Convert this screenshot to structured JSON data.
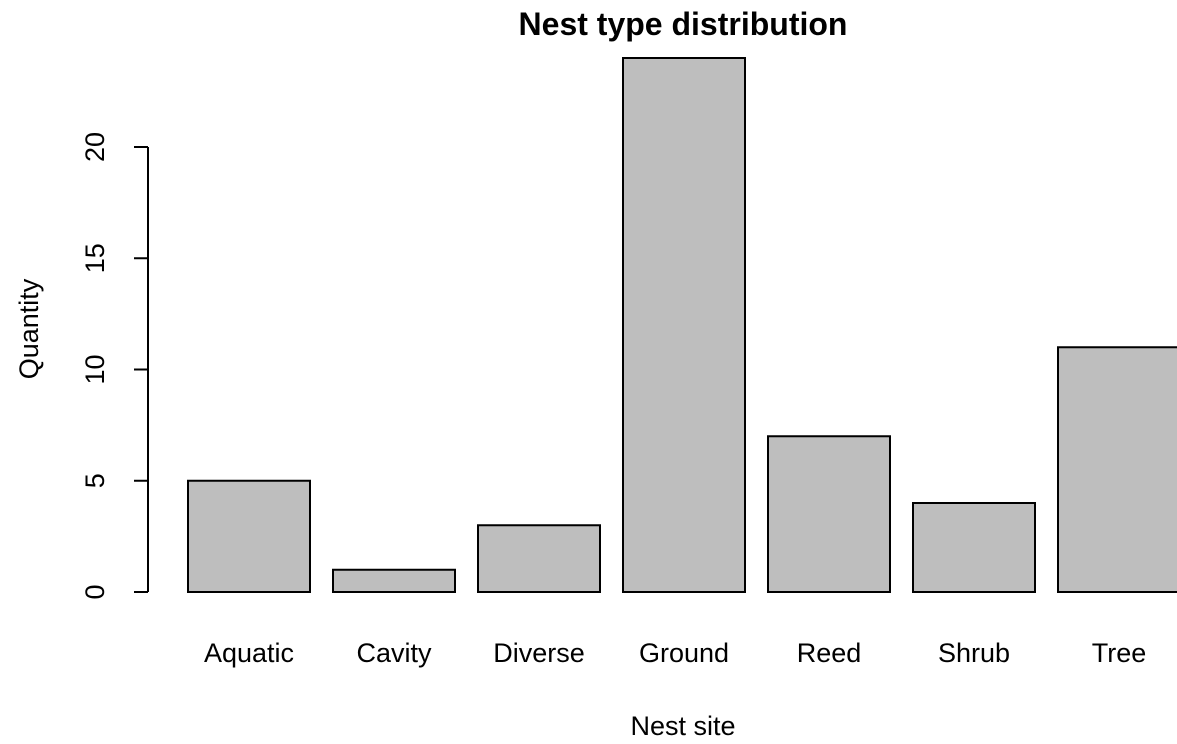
{
  "chart_data": {
    "type": "bar",
    "title": "Nest type distribution",
    "xlabel": "Nest site",
    "ylabel": "Quantity",
    "categories": [
      "Aquatic",
      "Cavity",
      "Diverse",
      "Ground",
      "Reed",
      "Shrub",
      "Tree"
    ],
    "values": [
      5,
      1,
      3,
      24,
      7,
      4,
      11
    ],
    "yticks": [
      0,
      5,
      10,
      15,
      20
    ],
    "ytick_labels": [
      "0",
      "5",
      "10",
      "15",
      "20"
    ],
    "ylim": [
      0,
      24
    ],
    "grid": false,
    "legend": "none",
    "bar_color": "#bebebe",
    "bar_border_color": "#000000"
  }
}
